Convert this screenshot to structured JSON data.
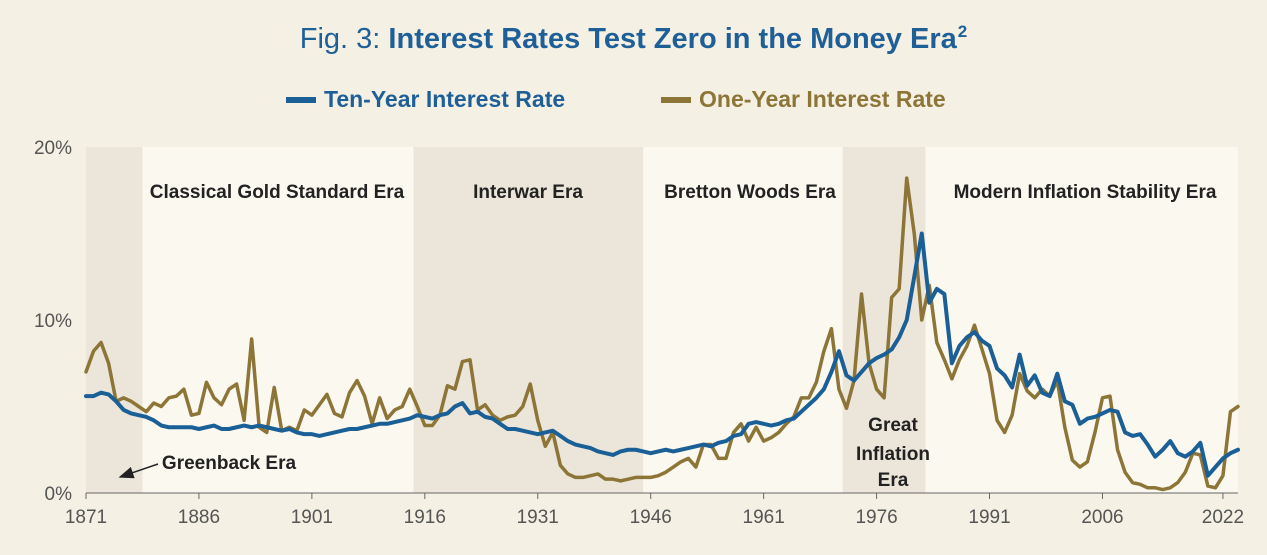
{
  "figure": {
    "title_prefix": "Fig. 3: ",
    "title_main": "Interest Rates Test Zero in the Money Era",
    "title_superscript": "2"
  },
  "colors": {
    "background": "#f5f0e4",
    "plot_light": "#fbf8f0",
    "plot_shade": "#ece6da",
    "ten_year": "#1a5f96",
    "one_year": "#8c7536",
    "title_blue": "#1f5f97",
    "axis_text": "#555555"
  },
  "chart_data": {
    "type": "line",
    "title": "Interest Rates Test Zero in the Money Era",
    "xlabel": "",
    "ylabel": "",
    "xlim": [
      1871,
      2024
    ],
    "ylim": [
      0,
      20
    ],
    "x_ticks": [
      1871,
      1886,
      1901,
      1916,
      1931,
      1946,
      1961,
      1976,
      1991,
      2006,
      2022
    ],
    "x_tick_labels": [
      "1871",
      "1886",
      "1901",
      "1916",
      "1931",
      "1946",
      "1961",
      "1976",
      "1991",
      "2006",
      "2022"
    ],
    "y_ticks": [
      0,
      10,
      20
    ],
    "y_tick_labels": [
      "0%",
      "10%",
      "20%"
    ],
    "legend_position": "top-center",
    "eras": [
      {
        "name": "Greenback Era",
        "start": 1871,
        "end": 1878.5,
        "shaded": true
      },
      {
        "name": "Classical Gold Standard Era",
        "start": 1878.5,
        "end": 1914.5,
        "shaded": false
      },
      {
        "name": "Interwar Era",
        "start": 1914.5,
        "end": 1945,
        "shaded": true
      },
      {
        "name": "Bretton Woods Era",
        "start": 1945,
        "end": 1971.5,
        "shaded": false
      },
      {
        "name": "Great Inflation Era",
        "start": 1971.5,
        "end": 1982.5,
        "shaded": true
      },
      {
        "name": "Modern Inflation Stability Era",
        "start": 1982.5,
        "end": 2024,
        "shaded": false
      }
    ],
    "era_labels": {
      "greenback": "Greenback Era",
      "classical": "Classical Gold Standard Era",
      "interwar": "Interwar Era",
      "bretton": "Bretton Woods Era",
      "great_line1": "Great",
      "great_line2": "Inflation",
      "great_line3": "Era",
      "modern": "Modern Inflation Stability Era"
    },
    "series": [
      {
        "name": "Ten-Year Interest Rate",
        "x": [
          1871,
          1872,
          1873,
          1874,
          1875,
          1876,
          1877,
          1878,
          1879,
          1880,
          1881,
          1882,
          1883,
          1884,
          1885,
          1886,
          1887,
          1888,
          1889,
          1890,
          1891,
          1892,
          1893,
          1894,
          1895,
          1896,
          1897,
          1898,
          1899,
          1900,
          1901,
          1902,
          1903,
          1904,
          1905,
          1906,
          1907,
          1908,
          1909,
          1910,
          1911,
          1912,
          1913,
          1914,
          1915,
          1916,
          1917,
          1918,
          1919,
          1920,
          1921,
          1922,
          1923,
          1924,
          1925,
          1926,
          1927,
          1928,
          1929,
          1930,
          1931,
          1932,
          1933,
          1934,
          1935,
          1936,
          1937,
          1938,
          1939,
          1940,
          1941,
          1942,
          1943,
          1944,
          1945,
          1946,
          1947,
          1948,
          1949,
          1950,
          1951,
          1952,
          1953,
          1954,
          1955,
          1956,
          1957,
          1958,
          1959,
          1960,
          1961,
          1962,
          1963,
          1964,
          1965,
          1966,
          1967,
          1968,
          1969,
          1970,
          1971,
          1972,
          1973,
          1974,
          1975,
          1976,
          1977,
          1978,
          1979,
          1980,
          1981,
          1982,
          1983,
          1984,
          1985,
          1986,
          1987,
          1988,
          1989,
          1990,
          1991,
          1992,
          1993,
          1994,
          1995,
          1996,
          1997,
          1998,
          1999,
          2000,
          2001,
          2002,
          2003,
          2004,
          2005,
          2006,
          2007,
          2008,
          2009,
          2010,
          2011,
          2012,
          2013,
          2014,
          2015,
          2016,
          2017,
          2018,
          2019,
          2020,
          2021,
          2022,
          2023,
          2024
        ],
        "values": [
          5.6,
          5.6,
          5.8,
          5.7,
          5.3,
          4.8,
          4.6,
          4.5,
          4.4,
          4.2,
          3.9,
          3.8,
          3.8,
          3.8,
          3.8,
          3.7,
          3.8,
          3.9,
          3.7,
          3.7,
          3.8,
          3.9,
          3.8,
          3.9,
          3.8,
          3.7,
          3.6,
          3.7,
          3.5,
          3.4,
          3.4,
          3.3,
          3.4,
          3.5,
          3.6,
          3.7,
          3.7,
          3.8,
          3.9,
          4.0,
          4.0,
          4.1,
          4.2,
          4.3,
          4.5,
          4.4,
          4.3,
          4.5,
          4.6,
          5.0,
          5.2,
          4.6,
          4.7,
          4.4,
          4.3,
          4.0,
          3.7,
          3.7,
          3.6,
          3.5,
          3.4,
          3.5,
          3.6,
          3.3,
          3.0,
          2.8,
          2.7,
          2.6,
          2.4,
          2.3,
          2.2,
          2.4,
          2.5,
          2.5,
          2.4,
          2.3,
          2.4,
          2.5,
          2.4,
          2.5,
          2.6,
          2.7,
          2.8,
          2.7,
          2.9,
          3.0,
          3.3,
          3.4,
          4.0,
          4.1,
          4.0,
          3.9,
          4.0,
          4.2,
          4.3,
          4.7,
          5.1,
          5.5,
          6.0,
          7.0,
          8.2,
          6.8,
          6.5,
          7.0,
          7.5,
          7.8,
          8.0,
          8.3,
          9.0,
          10.0,
          12.5,
          15.0,
          11.0,
          11.8,
          11.5,
          7.5,
          8.5,
          9.0,
          9.3,
          8.8,
          8.5,
          7.2,
          6.8,
          6.1,
          8.0,
          6.2,
          6.8,
          5.8,
          5.6,
          6.9,
          5.3,
          5.1,
          4.0,
          4.3,
          4.4,
          4.6,
          4.8,
          4.7,
          3.5,
          3.3,
          3.4,
          2.8,
          2.1,
          2.5,
          3.0,
          2.3,
          2.1,
          2.4,
          2.9,
          1.0,
          1.5,
          2.0,
          2.3,
          2.5
        ]
      },
      {
        "name": "One-Year Interest Rate",
        "x": [
          1871,
          1872,
          1873,
          1874,
          1875,
          1876,
          1877,
          1878,
          1879,
          1880,
          1881,
          1882,
          1883,
          1884,
          1885,
          1886,
          1887,
          1888,
          1889,
          1890,
          1891,
          1892,
          1893,
          1894,
          1895,
          1896,
          1897,
          1898,
          1899,
          1900,
          1901,
          1902,
          1903,
          1904,
          1905,
          1906,
          1907,
          1908,
          1909,
          1910,
          1911,
          1912,
          1913,
          1914,
          1915,
          1916,
          1917,
          1918,
          1919,
          1920,
          1921,
          1922,
          1923,
          1924,
          1925,
          1926,
          1927,
          1928,
          1929,
          1930,
          1931,
          1932,
          1933,
          1934,
          1935,
          1936,
          1937,
          1938,
          1939,
          1940,
          1941,
          1942,
          1943,
          1944,
          1945,
          1946,
          1947,
          1948,
          1949,
          1950,
          1951,
          1952,
          1953,
          1954,
          1955,
          1956,
          1957,
          1958,
          1959,
          1960,
          1961,
          1962,
          1963,
          1964,
          1965,
          1966,
          1967,
          1968,
          1969,
          1970,
          1971,
          1972,
          1973,
          1974,
          1975,
          1976,
          1977,
          1978,
          1979,
          1980,
          1981,
          1982,
          1983,
          1984,
          1985,
          1986,
          1987,
          1988,
          1989,
          1990,
          1991,
          1992,
          1993,
          1994,
          1995,
          1996,
          1997,
          1998,
          1999,
          2000,
          2001,
          2002,
          2003,
          2004,
          2005,
          2006,
          2007,
          2008,
          2009,
          2010,
          2011,
          2012,
          2013,
          2014,
          2015,
          2016,
          2017,
          2018,
          2019,
          2020,
          2021,
          2022,
          2023,
          2024
        ],
        "values": [
          7.0,
          8.2,
          8.7,
          7.5,
          5.3,
          5.5,
          5.3,
          5.0,
          4.7,
          5.2,
          5.0,
          5.5,
          5.6,
          6.0,
          4.5,
          4.6,
          6.4,
          5.5,
          5.1,
          6.0,
          6.3,
          4.2,
          8.9,
          3.8,
          3.5,
          6.1,
          3.6,
          3.8,
          3.6,
          4.8,
          4.5,
          5.1,
          5.7,
          4.6,
          4.4,
          5.8,
          6.5,
          5.6,
          4.0,
          5.5,
          4.3,
          4.8,
          5.0,
          6.0,
          5.0,
          3.9,
          3.9,
          4.5,
          6.2,
          6.0,
          7.6,
          7.7,
          4.8,
          5.1,
          4.5,
          4.2,
          4.4,
          4.5,
          5.0,
          6.3,
          4.2,
          2.7,
          3.5,
          1.6,
          1.1,
          0.9,
          0.9,
          1.0,
          1.1,
          0.8,
          0.8,
          0.7,
          0.8,
          0.9,
          0.9,
          0.9,
          1.0,
          1.2,
          1.5,
          1.8,
          2.0,
          1.5,
          2.8,
          2.8,
          2.0,
          2.0,
          3.5,
          4.0,
          3.0,
          3.8,
          3.0,
          3.2,
          3.5,
          4.0,
          4.4,
          5.5,
          5.5,
          6.4,
          8.2,
          9.5,
          6.0,
          4.9,
          6.5,
          11.5,
          7.5,
          6.0,
          5.5,
          11.3,
          11.8,
          18.2,
          15.0,
          10.0,
          12.0,
          8.7,
          7.7,
          6.6,
          7.7,
          8.5,
          9.7,
          8.3,
          6.9,
          4.2,
          3.5,
          4.5,
          6.9,
          5.9,
          5.5,
          6.0,
          5.6,
          6.5,
          3.8,
          1.9,
          1.5,
          1.8,
          3.5,
          5.5,
          5.6,
          2.5,
          1.2,
          0.6,
          0.5,
          0.3,
          0.3,
          0.2,
          0.3,
          0.6,
          1.2,
          2.3,
          2.2,
          0.4,
          0.3,
          1.0,
          4.7,
          5.0
        ]
      }
    ]
  },
  "legend": {
    "ten_year_label": "Ten-Year Interest Rate",
    "one_year_label": "One-Year Interest Rate"
  }
}
